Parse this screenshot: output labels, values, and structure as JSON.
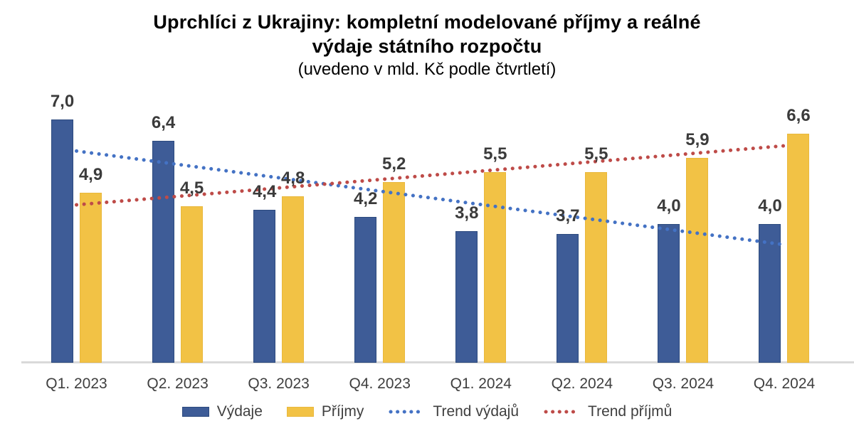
{
  "title": {
    "line1": "Uprchlíci z Ukrajiny: kompletní modelované příjmy a reálné",
    "line2": "výdaje státního rozpočtu",
    "subtitle": "(uvedeno v mld. Kč podle čtvrtletí)"
  },
  "chart_data": {
    "type": "bar",
    "title": "Uprchlíci z Ukrajiny: kompletní modelované příjmy a reálné výdaje státního rozpočtu",
    "subtitle": "(uvedeno v mld. Kč podle čtvrtletí)",
    "unit": "mld. Kč",
    "categories": [
      "Q1. 2023",
      "Q2. 2023",
      "Q3. 2023",
      "Q4. 2023",
      "Q1. 2024",
      "Q2. 2024",
      "Q3. 2024",
      "Q4. 2024"
    ],
    "series": [
      {
        "name": "Výdaje",
        "color": "#3e5c97",
        "border_color": "#2c4a7e",
        "values": [
          7.0,
          6.4,
          4.4,
          4.2,
          3.8,
          3.7,
          4.0,
          4.0
        ]
      },
      {
        "name": "Příjmy",
        "color": "#f2c245",
        "border_color": "#e9b83d",
        "values": [
          4.9,
          4.5,
          4.8,
          5.2,
          5.5,
          5.5,
          5.9,
          6.6
        ]
      }
    ],
    "trendlines": [
      {
        "name": "Trend výdajů",
        "color": "#4472c4",
        "start_value": 6.1,
        "end_value": 3.4
      },
      {
        "name": "Trend příjmů",
        "color": "#be4b48",
        "start_value": 4.55,
        "end_value": 6.25
      }
    ],
    "ylim": [
      0,
      8
    ],
    "grid": false,
    "legend_position": "bottom",
    "decimal_separator": ",",
    "axis_line_color": "#d9d9d9"
  },
  "legend": {
    "items": [
      {
        "label": "Výdaje",
        "type": "box",
        "color": "#3e5c97",
        "border_color": "#2c4a7e"
      },
      {
        "label": "Příjmy",
        "type": "box",
        "color": "#f2c245",
        "border_color": "#e9b83d"
      },
      {
        "label": "Trend výdajů",
        "type": "dotted-line",
        "color": "#4472c4"
      },
      {
        "label": "Trend příjmů",
        "type": "dotted-line",
        "color": "#be4b48"
      }
    ]
  }
}
